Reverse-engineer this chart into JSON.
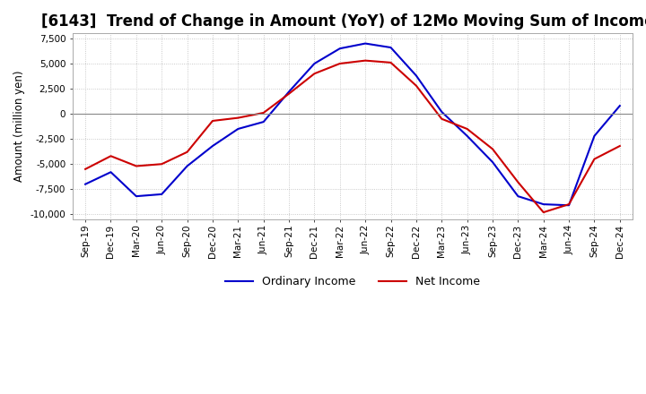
{
  "title": "[6143]  Trend of Change in Amount (YoY) of 12Mo Moving Sum of Incomes",
  "ylabel": "Amount (million yen)",
  "ylim": [
    -10500,
    8000
  ],
  "yticks": [
    -10000,
    -7500,
    -5000,
    -2500,
    0,
    2500,
    5000,
    7500
  ],
  "x_labels": [
    "Sep-19",
    "Dec-19",
    "Mar-20",
    "Jun-20",
    "Sep-20",
    "Dec-20",
    "Mar-21",
    "Jun-21",
    "Sep-21",
    "Dec-21",
    "Mar-22",
    "Jun-22",
    "Sep-22",
    "Dec-22",
    "Mar-23",
    "Jun-23",
    "Sep-23",
    "Dec-23",
    "Mar-24",
    "Jun-24",
    "Sep-24",
    "Dec-24"
  ],
  "ordinary_income": [
    -7000,
    -5800,
    -8200,
    -8000,
    -5200,
    -3200,
    -1500,
    -800,
    2200,
    5000,
    6500,
    7000,
    6600,
    3800,
    200,
    -2200,
    -4800,
    -8200,
    -9000,
    -9100,
    -2200,
    800
  ],
  "net_income": [
    -5500,
    -4200,
    -5200,
    -5000,
    -3800,
    -700,
    -400,
    100,
    2000,
    4000,
    5000,
    5300,
    5100,
    2800,
    -500,
    -1500,
    -3500,
    -6800,
    -9800,
    -9000,
    -4500,
    -3200
  ],
  "ordinary_color": "#0000cc",
  "net_color": "#cc0000",
  "background_color": "#ffffff",
  "grid_color": "#bbbbbb",
  "title_fontsize": 12,
  "legend_labels": [
    "Ordinary Income",
    "Net Income"
  ]
}
